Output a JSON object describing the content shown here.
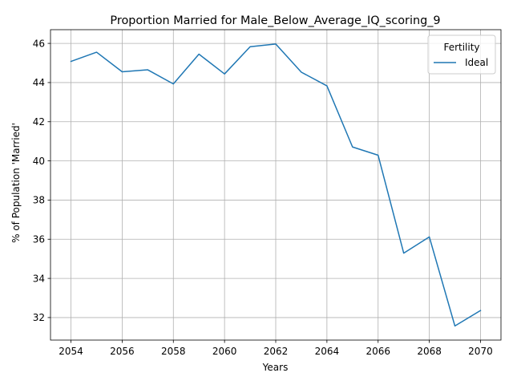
{
  "chart_data": {
    "type": "line",
    "title": "Proportion Married for Male_Below_Average_IQ_scoring_9",
    "xlabel": "Years",
    "ylabel": "% of Population 'Married'",
    "xlim": [
      2053.2,
      2070.8
    ],
    "ylim": [
      30.85,
      46.7
    ],
    "xticks": [
      2054,
      2056,
      2058,
      2060,
      2062,
      2064,
      2066,
      2068,
      2070
    ],
    "yticks": [
      32,
      34,
      36,
      38,
      40,
      42,
      44,
      46
    ],
    "grid": true,
    "legend": {
      "title": "Fertility",
      "position": "top-right"
    },
    "series": [
      {
        "name": "Ideal",
        "color": "#1f77b4",
        "x": [
          2054,
          2055,
          2056,
          2057,
          2058,
          2059,
          2060,
          2061,
          2062,
          2063,
          2064,
          2065,
          2066,
          2067,
          2068,
          2069,
          2070
        ],
        "y": [
          45.08,
          45.55,
          44.55,
          44.65,
          43.93,
          45.45,
          44.44,
          45.83,
          45.97,
          44.53,
          43.83,
          40.71,
          40.29,
          35.29,
          36.12,
          31.57,
          32.36
        ]
      }
    ]
  }
}
